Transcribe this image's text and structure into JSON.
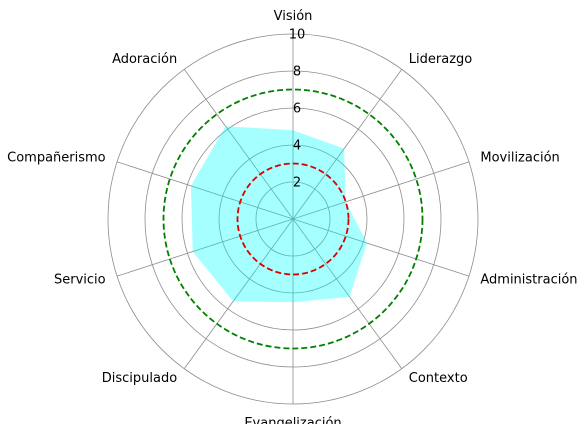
{
  "chart_data": {
    "type": "radar",
    "categories": [
      "Visión",
      "Liderazgo",
      "Movilización",
      "Administración",
      "Contexto",
      "Evangelización",
      "Discipulado",
      "Servicio",
      "Compañerismo",
      "Adoración"
    ],
    "series": [
      {
        "values": [
          4.8,
          4.7,
          3.0,
          4.2,
          5.2,
          4.5,
          5.5,
          5.7,
          5.8,
          6.2
        ],
        "fill_color": "#00ffff",
        "fill_opacity": 0.35
      }
    ],
    "reference_circles": [
      {
        "value": 3,
        "color": "#dd0000",
        "style": "dashed"
      },
      {
        "value": 7,
        "color": "#008000",
        "style": "dashed"
      }
    ],
    "radial_ticks": [
      "2",
      "4",
      "6",
      "8",
      "10"
    ],
    "rlim": [
      0,
      10
    ],
    "grid": true
  }
}
